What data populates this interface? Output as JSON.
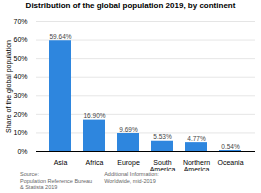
{
  "chart_data": {
    "type": "bar",
    "title": "Distribution of the global population 2019, by continent",
    "categories": [
      "Asia",
      "Africa",
      "Europe",
      "South America",
      "Northern America",
      "Oceania"
    ],
    "values": [
      59.64,
      16.9,
      9.69,
      5.53,
      4.77,
      0.54
    ],
    "value_labels": [
      "59.64%",
      "16.90%",
      "9.69%",
      "5.53%",
      "4.77%",
      "0.54%"
    ],
    "data_labels": true,
    "color": "#2e86de",
    "ylabel": "Share of the global population",
    "ylim": [
      0,
      70
    ],
    "yticks": [
      {
        "value": 0,
        "label": "0%"
      },
      {
        "value": 10,
        "label": "10%"
      },
      {
        "value": 20,
        "label": "20%"
      },
      {
        "value": 30,
        "label": "30%"
      },
      {
        "value": 40,
        "label": "40%"
      },
      {
        "value": 50,
        "label": "50%"
      },
      {
        "value": 60,
        "label": "60%"
      },
      {
        "value": 70,
        "label": "70%"
      }
    ],
    "grid": true,
    "annotations": [
      "Source:\nPopulation Reference Bureau\n& Statista 2019",
      "Additional Information:\nWorldwide, mid-2019"
    ]
  }
}
